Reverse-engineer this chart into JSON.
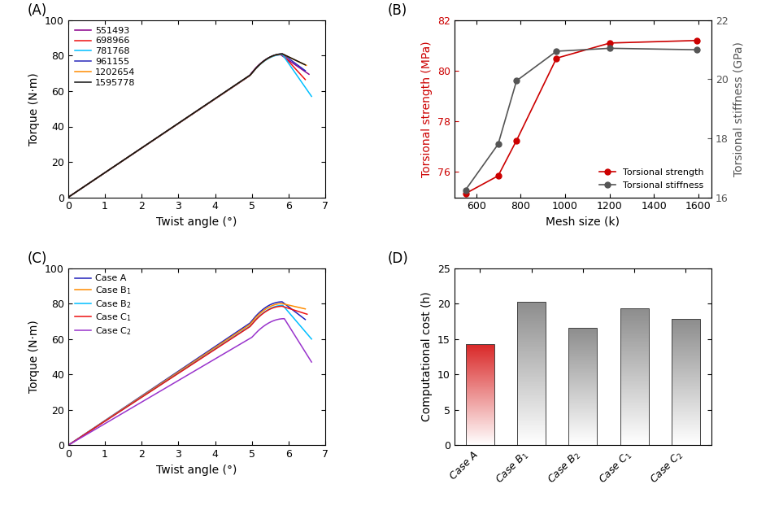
{
  "panel_A": {
    "label": "(A)",
    "xlabel": "Twist angle (°)",
    "ylabel": "Torque (N·m)",
    "xlim": [
      0,
      7
    ],
    "ylim": [
      0,
      100
    ],
    "xticks": [
      0,
      1,
      2,
      3,
      4,
      5,
      6,
      7
    ],
    "yticks": [
      0,
      20,
      40,
      60,
      80,
      100
    ],
    "series": [
      {
        "label": "551493",
        "color": "#8B008B",
        "peak_x": 5.78,
        "peak_y": 80.5,
        "end_x": 6.55,
        "end_y": 69.5,
        "slope": 13.9
      },
      {
        "label": "698966",
        "color": "#EE1111",
        "peak_x": 5.82,
        "peak_y": 80.8,
        "end_x": 6.45,
        "end_y": 66.5,
        "slope": 13.91
      },
      {
        "label": "781768",
        "color": "#00BFFF",
        "peak_x": 5.83,
        "peak_y": 80.6,
        "end_x": 6.62,
        "end_y": 57.0,
        "slope": 13.92
      },
      {
        "label": "961155",
        "color": "#2828BB",
        "peak_x": 5.83,
        "peak_y": 81.0,
        "end_x": 6.45,
        "end_y": 71.5,
        "slope": 13.94
      },
      {
        "label": "1202654",
        "color": "#FF8C00",
        "peak_x": 5.83,
        "peak_y": 80.9,
        "end_x": 6.48,
        "end_y": 74.5,
        "slope": 13.93
      },
      {
        "label": "1595778",
        "color": "#111111",
        "peak_x": 5.83,
        "peak_y": 81.0,
        "end_x": 6.45,
        "end_y": 74.8,
        "slope": 13.95
      }
    ]
  },
  "panel_B": {
    "label": "(B)",
    "xlabel": "Mesh size (k)",
    "ylabel_left": "Torsional strength (MPa)",
    "ylabel_right": "Torsional stiffness (GPa)",
    "xlim": [
      500,
      1660
    ],
    "ylim_left": [
      75,
      82
    ],
    "ylim_right": [
      16,
      22
    ],
    "xticks": [
      600,
      800,
      1000,
      1200,
      1400,
      1600
    ],
    "yticks_left": [
      76,
      78,
      80,
      82
    ],
    "yticks_right": [
      16,
      18,
      20,
      22
    ],
    "mesh_x": [
      551,
      698,
      781,
      961,
      1202,
      1595
    ],
    "strength_y": [
      75.15,
      75.85,
      77.25,
      80.5,
      81.1,
      81.2
    ],
    "stiffness_y": [
      16.25,
      17.8,
      19.95,
      20.95,
      21.05,
      21.0
    ]
  },
  "panel_C": {
    "label": "(C)",
    "xlabel": "Twist angle (°)",
    "ylabel": "Torque (N·m)",
    "xlim": [
      0,
      7
    ],
    "ylim": [
      0,
      100
    ],
    "xticks": [
      0,
      1,
      2,
      3,
      4,
      5,
      6,
      7
    ],
    "yticks": [
      0,
      20,
      40,
      60,
      80,
      100
    ],
    "series": [
      {
        "label": "Case A",
        "color": "#2020BB",
        "peak_x": 5.82,
        "peak_y": 81.0,
        "end_x": 6.45,
        "end_y": 71.0,
        "slope": 13.95
      },
      {
        "label": "Case B_1",
        "color": "#FF8C00",
        "peak_x": 5.82,
        "peak_y": 80.0,
        "end_x": 6.45,
        "end_y": 77.0,
        "slope": 13.8
      },
      {
        "label": "Case B_2",
        "color": "#00BFFF",
        "peak_x": 5.84,
        "peak_y": 79.0,
        "end_x": 6.62,
        "end_y": 60.0,
        "slope": 13.6
      },
      {
        "label": "Case C_1",
        "color": "#EE1111",
        "peak_x": 5.82,
        "peak_y": 78.5,
        "end_x": 6.5,
        "end_y": 74.0,
        "slope": 13.55
      },
      {
        "label": "Case C_2",
        "color": "#9933CC",
        "peak_x": 5.88,
        "peak_y": 71.5,
        "end_x": 6.62,
        "end_y": 47.0,
        "slope": 12.2
      }
    ]
  },
  "panel_D": {
    "label": "(D)",
    "ylabel": "Computational cost (h)",
    "ylim": [
      0,
      25
    ],
    "yticks": [
      0,
      5,
      10,
      15,
      20,
      25
    ],
    "categories": [
      "Case A",
      "Case B$_1$",
      "Case B$_2$",
      "Case C$_1$",
      "Case C$_2$"
    ],
    "values": [
      14.3,
      20.3,
      16.6,
      19.3,
      17.8
    ]
  }
}
